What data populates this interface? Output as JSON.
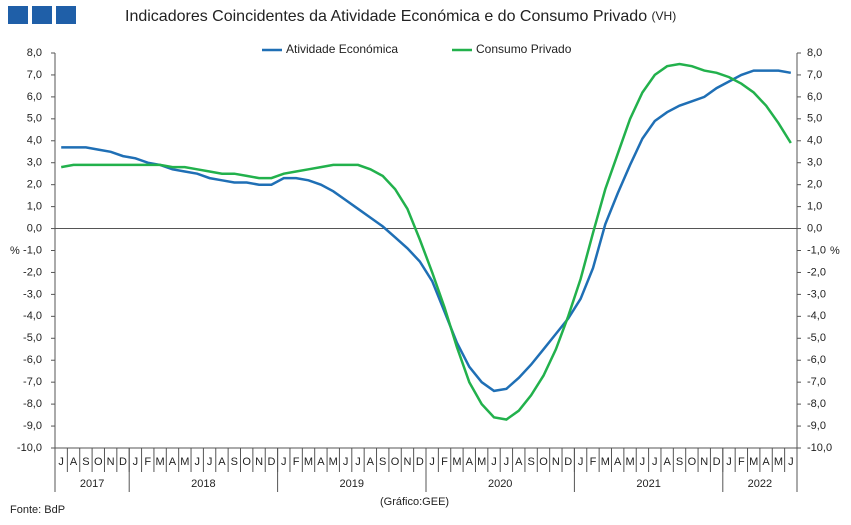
{
  "chart_data": {
    "type": "line",
    "title": "Indicadores Coincidentes da Atividade Económica e do Consumo Privado",
    "title_note": "(VH)",
    "y_label": "%",
    "y2_label": "%",
    "source": "Fonte: BdP",
    "note": "(Gráfico:GEE)",
    "categories": [
      "J",
      "A",
      "S",
      "O",
      "N",
      "D",
      "J",
      "F",
      "M",
      "A",
      "M",
      "J",
      "J",
      "A",
      "S",
      "O",
      "N",
      "D",
      "J",
      "F",
      "M",
      "A",
      "M",
      "J",
      "J",
      "A",
      "S",
      "O",
      "N",
      "D",
      "J",
      "F",
      "M",
      "A",
      "M",
      "J",
      "J",
      "A",
      "S",
      "O",
      "N",
      "D",
      "J",
      "F",
      "M",
      "A",
      "M",
      "J",
      "J",
      "A",
      "S",
      "O",
      "N",
      "D",
      "J",
      "F",
      "M",
      "A",
      "M",
      "J"
    ],
    "years": [
      "2017",
      "2018",
      "2019",
      "2020",
      "2021",
      "2022"
    ],
    "series": [
      {
        "name": "Atividade Económica",
        "color": "#1f6fb5",
        "values": [
          3.7,
          3.7,
          3.7,
          3.6,
          3.5,
          3.3,
          3.2,
          3.0,
          2.9,
          2.7,
          2.6,
          2.5,
          2.3,
          2.2,
          2.1,
          2.1,
          2.0,
          2.0,
          2.3,
          2.3,
          2.2,
          2.0,
          1.7,
          1.3,
          0.9,
          0.5,
          0.1,
          -0.4,
          -0.9,
          -1.5,
          -2.4,
          -3.8,
          -5.2,
          -6.3,
          -7.0,
          -7.4,
          -7.3,
          -6.8,
          -6.2,
          -5.5,
          -4.8,
          -4.1,
          -3.2,
          -1.8,
          0.2,
          1.6,
          2.9,
          4.1,
          4.9,
          5.3,
          5.6,
          5.8,
          6.0,
          6.4,
          6.7,
          7.0,
          7.2,
          7.2,
          7.2,
          7.1
        ]
      },
      {
        "name": "Consumo Privado",
        "color": "#22b14c",
        "values": [
          2.8,
          2.9,
          2.9,
          2.9,
          2.9,
          2.9,
          2.9,
          2.9,
          2.9,
          2.8,
          2.8,
          2.7,
          2.6,
          2.5,
          2.5,
          2.4,
          2.3,
          2.3,
          2.5,
          2.6,
          2.7,
          2.8,
          2.9,
          2.9,
          2.9,
          2.7,
          2.4,
          1.8,
          0.9,
          -0.5,
          -2.0,
          -3.6,
          -5.4,
          -7.0,
          -8.0,
          -8.6,
          -8.7,
          -8.3,
          -7.6,
          -6.7,
          -5.5,
          -4.0,
          -2.3,
          -0.2,
          1.8,
          3.4,
          5.0,
          6.2,
          7.0,
          7.4,
          7.5,
          7.4,
          7.2,
          7.1,
          6.9,
          6.6,
          6.2,
          5.6,
          4.8,
          3.9
        ]
      }
    ],
    "ylim": [
      -10,
      8
    ],
    "yticks": [
      {
        "value": 8,
        "label": "8,0"
      },
      {
        "value": 7,
        "label": "7,0"
      },
      {
        "value": 6,
        "label": "6,0"
      },
      {
        "value": 5,
        "label": "5,0"
      },
      {
        "value": 4,
        "label": "4,0"
      },
      {
        "value": 3,
        "label": "3,0"
      },
      {
        "value": 2,
        "label": "2,0"
      },
      {
        "value": 1,
        "label": "1,0"
      },
      {
        "value": 0,
        "label": "0,0"
      },
      {
        "value": -1,
        "label": "-1,0"
      },
      {
        "value": -2,
        "label": "-2,0"
      },
      {
        "value": -3,
        "label": "-3,0"
      },
      {
        "value": -4,
        "label": "-4,0"
      },
      {
        "value": -5,
        "label": "-5,0"
      },
      {
        "value": -6,
        "label": "-6,0"
      },
      {
        "value": -7,
        "label": "-7,0"
      },
      {
        "value": -8,
        "label": "-8,0"
      },
      {
        "value": -9,
        "label": "-9,0"
      },
      {
        "value": -10,
        "label": "-10,0"
      }
    ],
    "grid": false,
    "legend": "top"
  }
}
